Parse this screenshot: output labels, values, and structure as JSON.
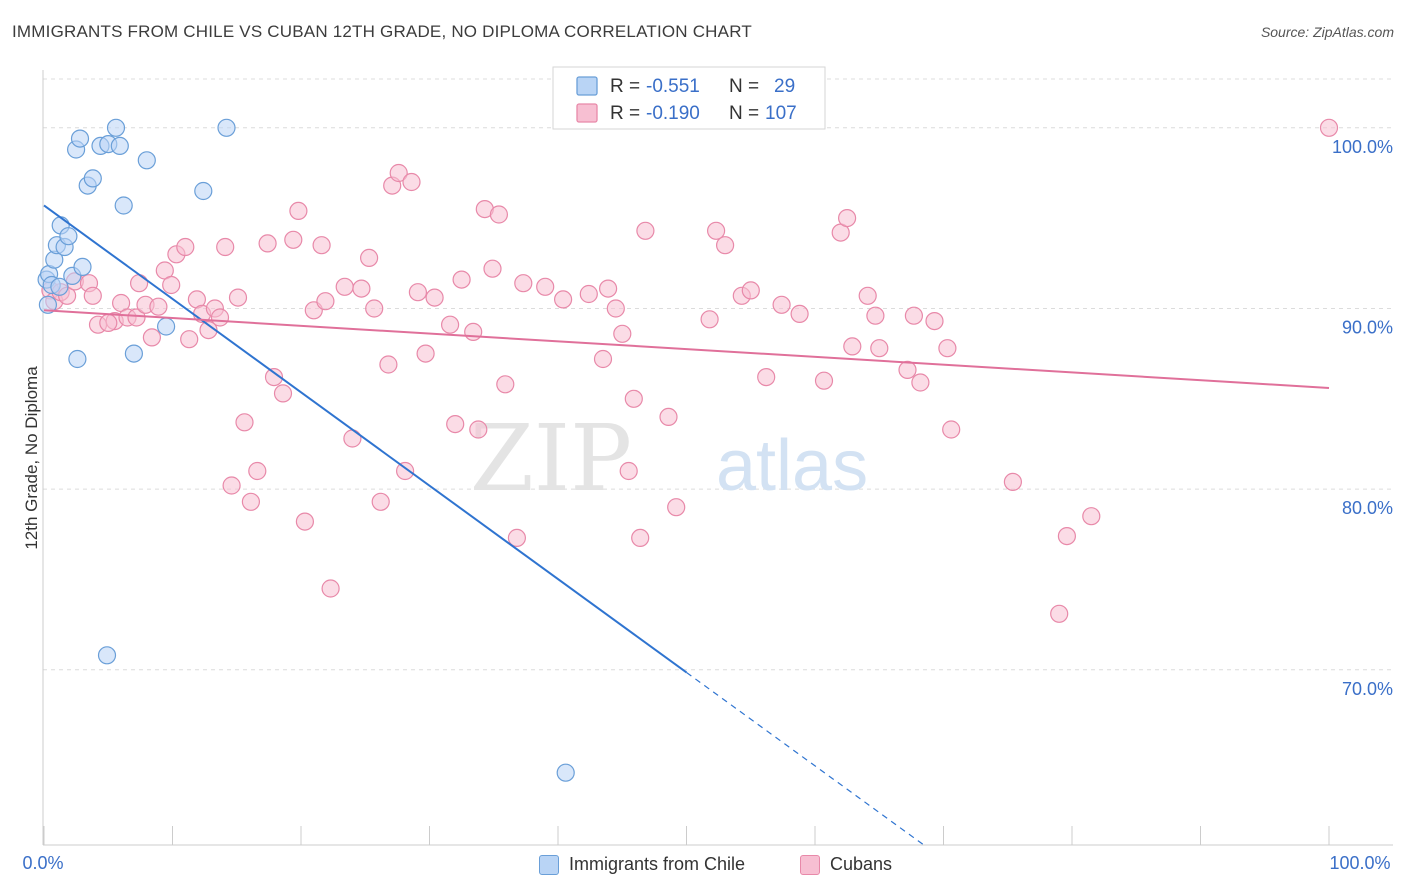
{
  "header": {
    "title": "IMMIGRANTS FROM CHILE VS CUBAN 12TH GRADE, NO DIPLOMA CORRELATION CHART",
    "source": "Source: ZipAtlas.com"
  },
  "watermark": {
    "zip": "ZIP",
    "atlas": "atlas"
  },
  "colors": {
    "chile_fill": "#b9d4f5",
    "chile_stroke": "#6a9fd8",
    "chile_line": "#2f74d0",
    "cuban_fill": "#f7bfd2",
    "cuban_stroke": "#e889a9",
    "cuban_line": "#e0709a",
    "axis_label": "#3a6fc8",
    "grid": "#dcdcdc"
  },
  "chart_data": {
    "type": "scatter",
    "title": "IMMIGRANTS FROM CHILE VS CUBAN 12TH GRADE, NO DIPLOMA CORRELATION CHART",
    "xlabel": "",
    "ylabel": "12th Grade, No Diploma",
    "xlim": [
      0,
      100
    ],
    "ylim": [
      60.3,
      103.2
    ],
    "x_tick_labels": [
      "0.0%",
      "100.0%"
    ],
    "y_ticks": [
      70,
      80,
      90,
      100
    ],
    "y_tick_labels": [
      "70.0%",
      "80.0%",
      "90.0%",
      "100.0%"
    ],
    "grid": "horizontal dashed",
    "legend_position": "top-center",
    "stats": [
      {
        "r_label": "R = ",
        "r": "-0.551",
        "n_label": "N = ",
        "n": "29"
      },
      {
        "r_label": "R = ",
        "r": "-0.190",
        "n_label": "N = ",
        "n": "107"
      }
    ],
    "series": [
      {
        "name": "Immigrants from Chile",
        "trend": {
          "x": [
            0,
            100
          ],
          "y": [
            95.7,
            44.0
          ],
          "solid_until_x": 50
        },
        "points": [
          [
            0.2,
            91.6
          ],
          [
            0.4,
            91.9
          ],
          [
            0.6,
            91.3
          ],
          [
            0.8,
            92.7
          ],
          [
            1.0,
            93.5
          ],
          [
            1.3,
            94.6
          ],
          [
            1.6,
            93.4
          ],
          [
            1.9,
            94.0
          ],
          [
            2.2,
            91.8
          ],
          [
            3.0,
            92.3
          ],
          [
            2.5,
            98.8
          ],
          [
            2.8,
            99.4
          ],
          [
            3.4,
            96.8
          ],
          [
            3.8,
            97.2
          ],
          [
            4.4,
            99.0
          ],
          [
            5.0,
            99.1
          ],
          [
            5.6,
            100.0
          ],
          [
            5.9,
            99.0
          ],
          [
            6.2,
            95.7
          ],
          [
            8.0,
            98.2
          ],
          [
            12.4,
            96.5
          ],
          [
            14.2,
            100.0
          ],
          [
            2.6,
            87.2
          ],
          [
            7.0,
            87.5
          ],
          [
            9.5,
            89.0
          ],
          [
            4.9,
            70.8
          ],
          [
            40.6,
            64.3
          ],
          [
            0.3,
            90.2
          ],
          [
            1.2,
            91.2
          ]
        ]
      },
      {
        "name": "Cubans",
        "trend": {
          "x": [
            0,
            100
          ],
          "y": [
            89.9,
            85.6
          ]
        },
        "points": [
          [
            0.5,
            91.0
          ],
          [
            0.8,
            90.4
          ],
          [
            1.3,
            90.9
          ],
          [
            1.8,
            90.7
          ],
          [
            2.4,
            91.5
          ],
          [
            3.5,
            91.4
          ],
          [
            3.8,
            90.7
          ],
          [
            4.2,
            89.1
          ],
          [
            5.5,
            89.3
          ],
          [
            6.0,
            90.3
          ],
          [
            6.5,
            89.5
          ],
          [
            7.2,
            89.5
          ],
          [
            7.4,
            91.4
          ],
          [
            7.9,
            90.2
          ],
          [
            8.4,
            88.4
          ],
          [
            8.9,
            90.1
          ],
          [
            9.4,
            92.1
          ],
          [
            9.9,
            91.3
          ],
          [
            10.3,
            93.0
          ],
          [
            11.0,
            93.4
          ],
          [
            11.3,
            88.3
          ],
          [
            11.9,
            90.5
          ],
          [
            12.3,
            89.7
          ],
          [
            12.8,
            88.8
          ],
          [
            13.3,
            90.0
          ],
          [
            13.7,
            89.5
          ],
          [
            14.1,
            93.4
          ],
          [
            14.6,
            80.2
          ],
          [
            15.1,
            90.6
          ],
          [
            15.6,
            83.7
          ],
          [
            16.1,
            79.3
          ],
          [
            16.6,
            81.0
          ],
          [
            17.4,
            93.6
          ],
          [
            17.9,
            86.2
          ],
          [
            18.6,
            85.3
          ],
          [
            19.4,
            93.8
          ],
          [
            19.8,
            95.4
          ],
          [
            20.3,
            78.2
          ],
          [
            21.0,
            89.9
          ],
          [
            21.6,
            93.5
          ],
          [
            21.9,
            90.4
          ],
          [
            22.3,
            74.5
          ],
          [
            23.4,
            91.2
          ],
          [
            24.0,
            82.8
          ],
          [
            24.7,
            91.1
          ],
          [
            25.3,
            92.8
          ],
          [
            25.7,
            90.0
          ],
          [
            26.2,
            79.3
          ],
          [
            26.8,
            86.9
          ],
          [
            27.1,
            96.8
          ],
          [
            27.6,
            97.5
          ],
          [
            28.1,
            81.0
          ],
          [
            28.6,
            97.0
          ],
          [
            29.1,
            90.9
          ],
          [
            29.7,
            87.5
          ],
          [
            30.4,
            90.6
          ],
          [
            31.6,
            89.1
          ],
          [
            32.0,
            83.6
          ],
          [
            32.5,
            91.6
          ],
          [
            33.4,
            88.7
          ],
          [
            33.8,
            83.3
          ],
          [
            34.3,
            95.5
          ],
          [
            34.9,
            92.2
          ],
          [
            35.4,
            95.2
          ],
          [
            35.9,
            85.8
          ],
          [
            36.8,
            77.3
          ],
          [
            37.3,
            91.4
          ],
          [
            39.0,
            91.2
          ],
          [
            40.4,
            90.5
          ],
          [
            42.4,
            90.8
          ],
          [
            43.5,
            87.2
          ],
          [
            43.9,
            91.1
          ],
          [
            44.5,
            90.0
          ],
          [
            45.0,
            88.6
          ],
          [
            45.5,
            81.0
          ],
          [
            45.9,
            85.0
          ],
          [
            46.4,
            77.3
          ],
          [
            46.8,
            94.3
          ],
          [
            48.6,
            84.0
          ],
          [
            49.2,
            79.0
          ],
          [
            51.8,
            89.4
          ],
          [
            52.3,
            94.3
          ],
          [
            53.0,
            93.5
          ],
          [
            54.3,
            90.7
          ],
          [
            55.0,
            91.0
          ],
          [
            56.2,
            86.2
          ],
          [
            57.4,
            90.2
          ],
          [
            58.8,
            89.7
          ],
          [
            60.7,
            86.0
          ],
          [
            62.0,
            94.2
          ],
          [
            62.5,
            95.0
          ],
          [
            62.9,
            87.9
          ],
          [
            64.1,
            90.7
          ],
          [
            64.7,
            89.6
          ],
          [
            65.0,
            87.8
          ],
          [
            67.2,
            86.6
          ],
          [
            67.7,
            89.6
          ],
          [
            68.2,
            85.9
          ],
          [
            69.3,
            89.3
          ],
          [
            70.3,
            87.8
          ],
          [
            70.6,
            83.3
          ],
          [
            75.4,
            80.4
          ],
          [
            79.0,
            73.1
          ],
          [
            79.6,
            77.4
          ],
          [
            81.5,
            78.5
          ],
          [
            100.0,
            100.0
          ],
          [
            5.0,
            89.2
          ]
        ]
      }
    ]
  }
}
